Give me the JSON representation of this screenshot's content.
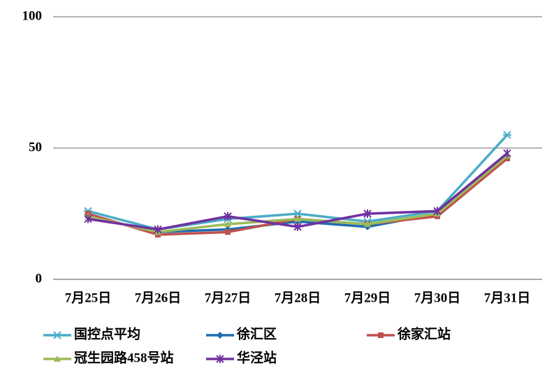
{
  "chart_data": {
    "type": "line",
    "categories": [
      "7月25日",
      "7月26日",
      "7月27日",
      "7月28日",
      "7月29日",
      "7月30日",
      "7月31日"
    ],
    "series": [
      {
        "name": "国控点平均",
        "color": "#4bacc6",
        "marker": "asterisk",
        "values": [
          26,
          19,
          23,
          25,
          22,
          26,
          55
        ]
      },
      {
        "name": "徐汇区",
        "color": "#1f6cb0",
        "marker": "diamond",
        "values": [
          24,
          18,
          19,
          22,
          20,
          25,
          47
        ]
      },
      {
        "name": "徐家汇站",
        "color": "#c0504d",
        "marker": "square",
        "values": [
          25,
          17,
          18,
          23,
          21,
          24,
          46
        ]
      },
      {
        "name": "冠生园路458号站",
        "color": "#9bbb59",
        "marker": "triangle",
        "values": [
          24,
          18,
          21,
          23,
          21,
          25,
          47
        ]
      },
      {
        "name": "华泾站",
        "color": "#7030a0",
        "marker": "star",
        "values": [
          23,
          19,
          24,
          20,
          25,
          26,
          48
        ]
      }
    ],
    "ylim": [
      0,
      100
    ],
    "yticks": [
      0,
      50,
      100
    ],
    "grid": true
  }
}
